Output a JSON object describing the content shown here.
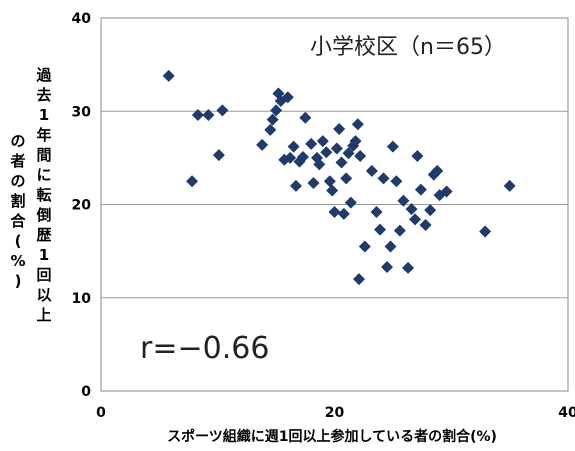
{
  "chart_data": {
    "type": "scatter",
    "title": "",
    "annotations": {
      "group": "小学校区（n＝65）",
      "correlation": "r=−0.66"
    },
    "xlabel": "スポーツ組織に週1回以上参加している者の割合(%)",
    "ylabel": "過去1年間に転倒歴1回以上の者の割合(%)",
    "xlim": [
      0,
      40
    ],
    "ylim": [
      0,
      40
    ],
    "xticks": [
      "0",
      "20",
      "40"
    ],
    "yticks": [
      "0",
      "10",
      "20",
      "30",
      "40"
    ],
    "grid": "horizontal",
    "marker_color": "#1f3a6b",
    "points": [
      [
        5.8,
        33.8
      ],
      [
        7.8,
        22.5
      ],
      [
        8.3,
        29.6
      ],
      [
        9.2,
        29.6
      ],
      [
        10.1,
        25.3
      ],
      [
        10.4,
        30.1
      ],
      [
        13.8,
        26.4
      ],
      [
        14.5,
        28.0
      ],
      [
        14.7,
        29.1
      ],
      [
        15.0,
        30.1
      ],
      [
        15.2,
        31.9
      ],
      [
        15.4,
        31.1
      ],
      [
        15.7,
        24.8
      ],
      [
        16.0,
        31.5
      ],
      [
        16.2,
        25.0
      ],
      [
        16.5,
        26.2
      ],
      [
        16.7,
        22.0
      ],
      [
        17.0,
        24.6
      ],
      [
        17.3,
        25.1
      ],
      [
        17.5,
        29.3
      ],
      [
        18.0,
        26.5
      ],
      [
        18.2,
        22.3
      ],
      [
        18.5,
        25.0
      ],
      [
        18.7,
        24.3
      ],
      [
        19.0,
        26.8
      ],
      [
        19.3,
        25.6
      ],
      [
        19.6,
        22.5
      ],
      [
        20.0,
        19.2
      ],
      [
        20.2,
        26.0
      ],
      [
        20.4,
        28.1
      ],
      [
        20.6,
        24.5
      ],
      [
        20.8,
        19.0
      ],
      [
        21.0,
        22.8
      ],
      [
        21.2,
        25.5
      ],
      [
        21.4,
        20.2
      ],
      [
        21.6,
        26.3
      ],
      [
        21.8,
        26.8
      ],
      [
        22.0,
        28.6
      ],
      [
        22.2,
        25.2
      ],
      [
        22.1,
        12.0
      ],
      [
        22.6,
        15.5
      ],
      [
        23.2,
        23.6
      ],
      [
        23.6,
        19.2
      ],
      [
        23.9,
        17.3
      ],
      [
        24.2,
        22.8
      ],
      [
        24.5,
        13.3
      ],
      [
        24.8,
        15.5
      ],
      [
        25.0,
        26.2
      ],
      [
        25.3,
        22.5
      ],
      [
        25.6,
        17.2
      ],
      [
        25.9,
        20.4
      ],
      [
        26.3,
        13.2
      ],
      [
        26.6,
        19.5
      ],
      [
        26.9,
        18.4
      ],
      [
        27.1,
        25.2
      ],
      [
        27.4,
        21.6
      ],
      [
        27.8,
        17.8
      ],
      [
        28.2,
        19.4
      ],
      [
        28.5,
        23.2
      ],
      [
        28.8,
        23.6
      ],
      [
        29.0,
        21.0
      ],
      [
        29.6,
        21.4
      ],
      [
        32.9,
        17.1
      ],
      [
        35.0,
        22.0
      ],
      [
        19.8,
        21.5
      ]
    ]
  }
}
